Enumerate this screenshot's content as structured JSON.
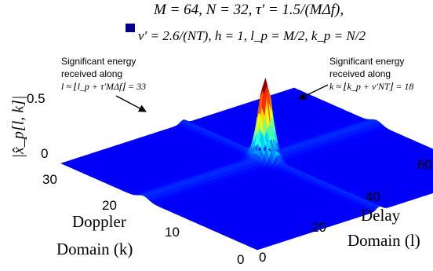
{
  "chart_data": {
    "type": "surface",
    "legend": {
      "line1": "M = 64, N = 32, τ′ = 1.5/(MΔf),",
      "line2": "ν′ = 2.6/(NT), h = 1, l_p = M/2, k_p = N/2",
      "marker_color": "#00008b"
    },
    "zlabel": "|x̂_p[l, k]|",
    "xlabel": {
      "line1": "Delay",
      "line2": "Domain (l)"
    },
    "ylabel": {
      "line1": "Doppler",
      "line2": "Domain (k)"
    },
    "x_ticks": [
      "0",
      "20",
      "40",
      "60"
    ],
    "y_ticks": [
      "0",
      "10",
      "20",
      "30"
    ],
    "z_ticks": [
      "0",
      "0.5"
    ],
    "x_range": [
      0,
      63
    ],
    "y_range": [
      0,
      31
    ],
    "z_range": [
      0,
      0.6
    ],
    "peak": {
      "l": 33,
      "k": 18,
      "value": 0.55
    },
    "ridges": [
      {
        "along": "l",
        "at": 33,
        "level": 0.03
      },
      {
        "along": "k",
        "at": 18,
        "level": 0.03
      }
    ],
    "colormap": "jet",
    "annotations": [
      {
        "name": "left",
        "lines": [
          "Significant energy",
          "received along"
        ],
        "math": "l ≈ ⌊l_p + τ′MΔf⌋ = 33"
      },
      {
        "name": "right",
        "lines": [
          "Significant energy",
          "received along"
        ],
        "math": "k ≈ ⌊k_p + ν′NT⌋ = 18"
      }
    ]
  }
}
